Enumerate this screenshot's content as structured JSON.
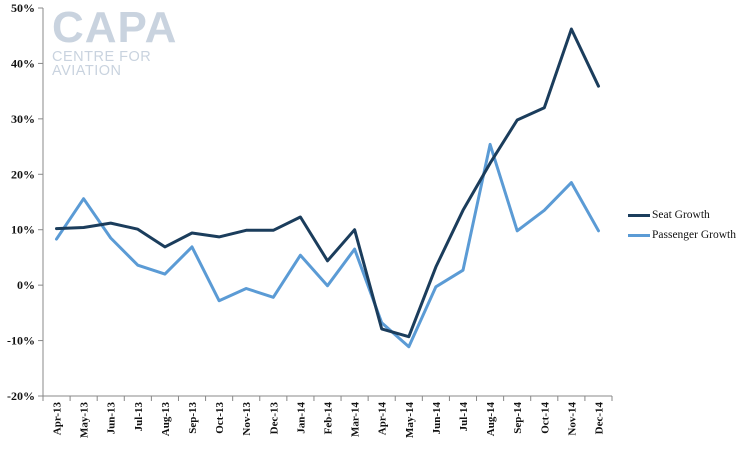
{
  "logo": {
    "main": "CAPA",
    "sub": "CENTRE FOR AVIATION"
  },
  "chart_data": {
    "type": "line",
    "categories": [
      "Apr-13",
      "May-13",
      "Jun-13",
      "Jul-13",
      "Aug-13",
      "Sep-13",
      "Oct-13",
      "Nov-13",
      "Dec-13",
      "Jan-14",
      "Feb-14",
      "Mar-14",
      "Apr-14",
      "May-14",
      "Jun-14",
      "Jul-14",
      "Aug-14",
      "Sep-14",
      "Oct-14",
      "Nov-14",
      "Dec-14"
    ],
    "series": [
      {
        "name": "Seat Growth",
        "color": "#1b3d5c",
        "values": [
          10.2,
          10.4,
          11.2,
          10.1,
          6.9,
          9.4,
          8.7,
          9.9,
          9.9,
          12.3,
          4.4,
          10.0,
          -7.9,
          -9.3,
          3.3,
          13.5,
          22.0,
          29.8,
          32.0,
          46.2,
          35.9
        ]
      },
      {
        "name": "Passenger Growth",
        "color": "#5b9bd5",
        "values": [
          8.3,
          15.6,
          8.5,
          3.6,
          2.0,
          6.9,
          -2.8,
          -0.6,
          -2.2,
          5.4,
          -0.1,
          6.5,
          -6.8,
          -11.1,
          -0.3,
          2.7,
          25.4,
          9.8,
          13.5,
          18.5,
          9.8
        ]
      }
    ],
    "ylim": [
      -20,
      50
    ],
    "yticks": [
      "-20%",
      "-10%",
      "0%",
      "10%",
      "20%",
      "30%",
      "40%",
      "50%"
    ],
    "ytick_values": [
      -20,
      -10,
      0,
      10,
      20,
      30,
      40,
      50
    ],
    "grid": false,
    "legend": "right"
  }
}
